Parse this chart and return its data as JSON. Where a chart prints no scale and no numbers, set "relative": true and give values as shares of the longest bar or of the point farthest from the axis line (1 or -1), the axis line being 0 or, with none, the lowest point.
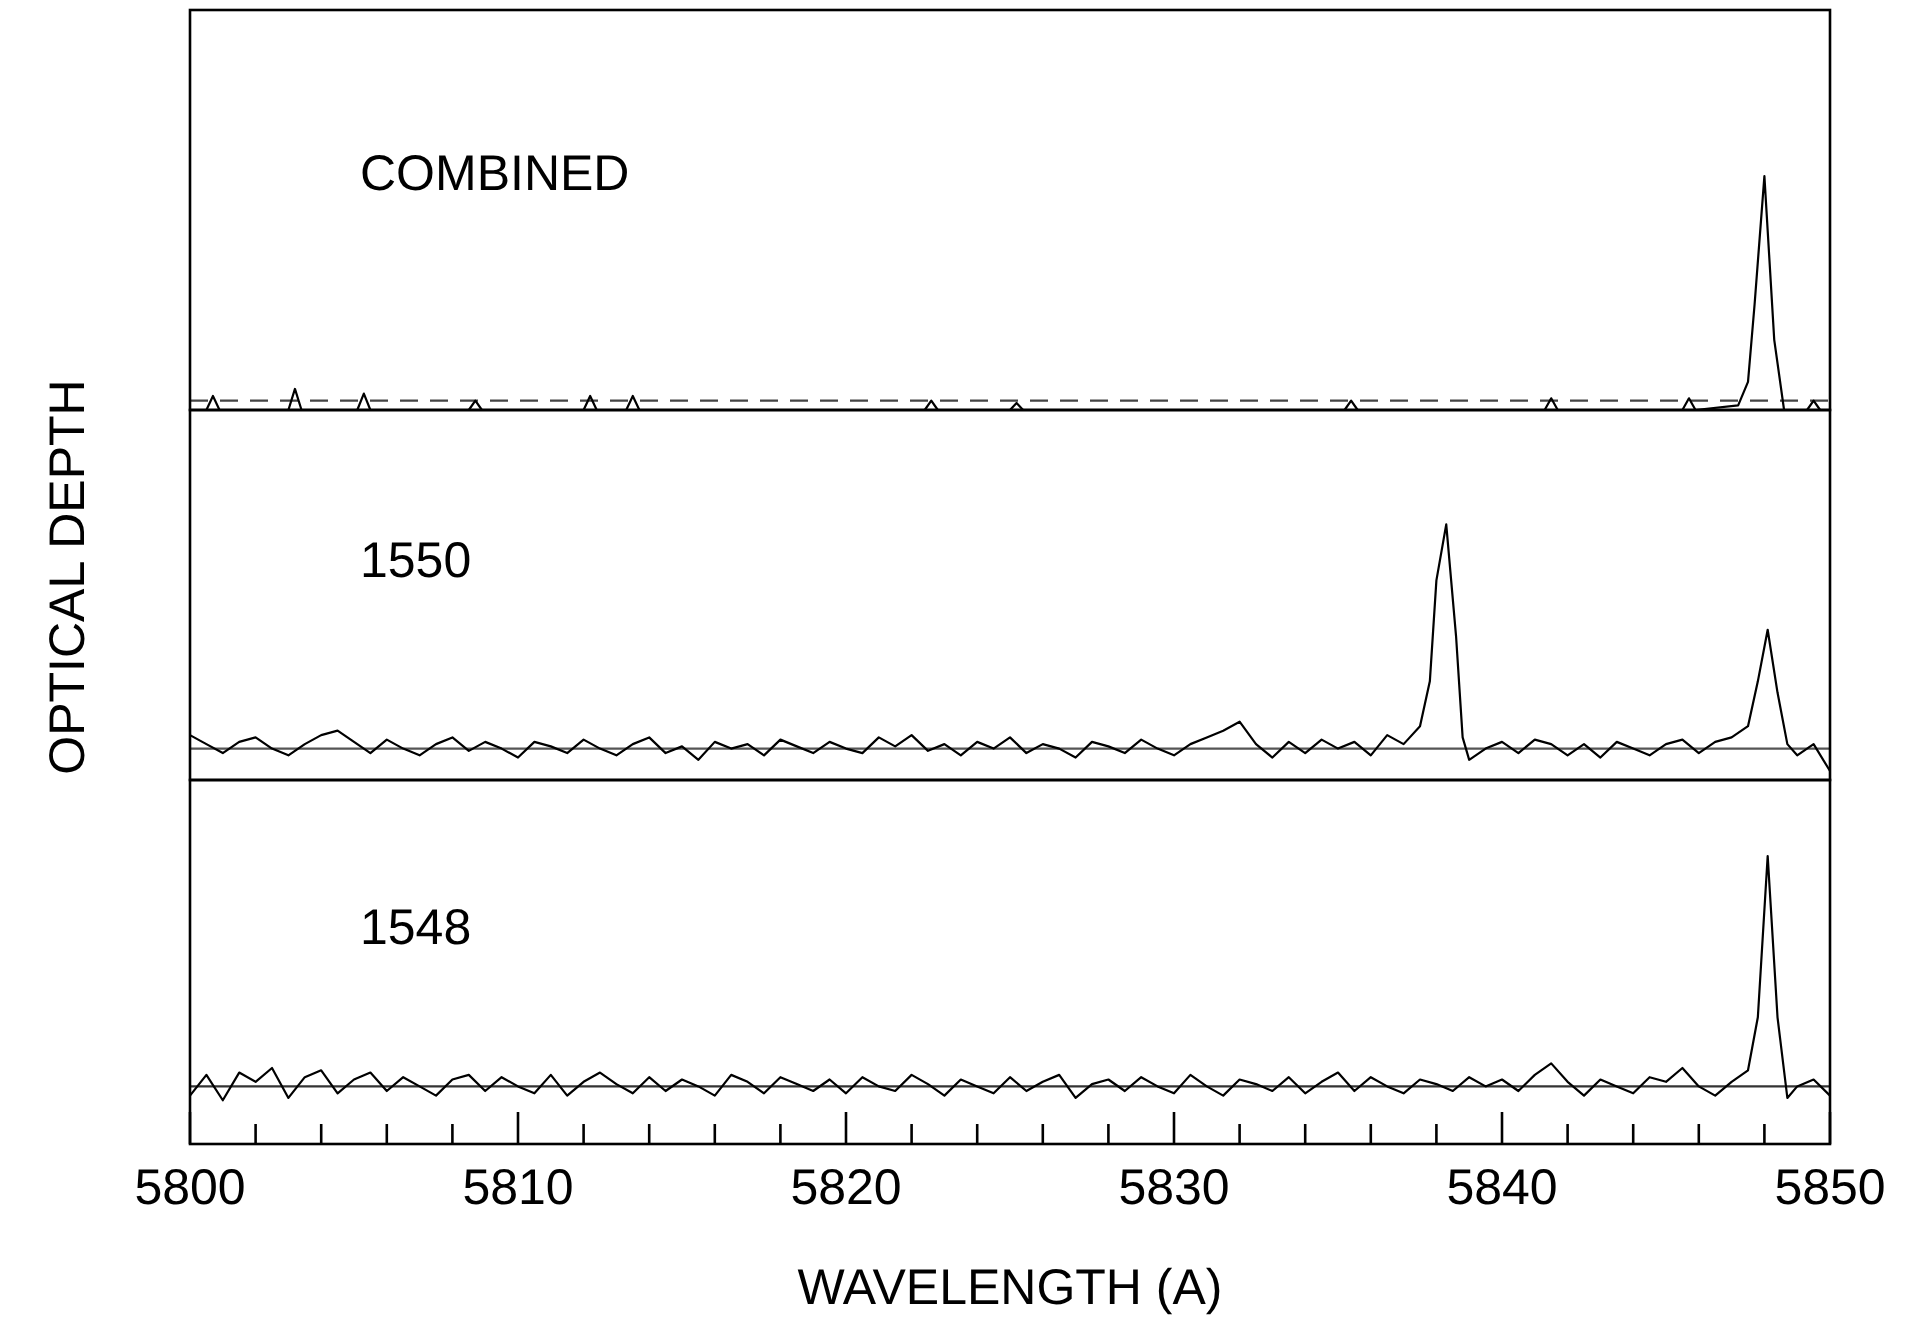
{
  "chart_data": [
    {
      "type": "line",
      "relative": true,
      "annotations": [
        "COMBINED"
      ],
      "xlim": [
        5800,
        5850
      ],
      "tick_labels": false,
      "ref_lines": [
        {
          "axis": "y",
          "value": 0.04,
          "color": "#444444",
          "line_style": "dashed"
        }
      ],
      "series": [
        {
          "color": "#000000",
          "x": [
            5800,
            5800.5,
            5800.7,
            5800.9,
            5803,
            5803.2,
            5803.4,
            5805.1,
            5805.3,
            5805.5,
            5808.5,
            5808.7,
            5808.9,
            5812,
            5812.2,
            5812.4,
            5813.3,
            5813.5,
            5813.7,
            5822.4,
            5822.6,
            5822.8,
            5825,
            5825.2,
            5825.4,
            5835.2,
            5835.4,
            5835.6,
            5841.3,
            5841.5,
            5841.7,
            5845.5,
            5845.7,
            5845.9,
            5847.2,
            5847.5,
            5847.7,
            5848.0,
            5848.3,
            5848.6,
            5849.3,
            5849.5,
            5849.7,
            5850
          ],
          "values": [
            0,
            0,
            0.06,
            0,
            0,
            0.09,
            0,
            0,
            0.07,
            0,
            0,
            0.04,
            0,
            0,
            0.06,
            0,
            0,
            0.06,
            0,
            0,
            0.04,
            0,
            0,
            0.03,
            0,
            0,
            0.04,
            0,
            0,
            0.05,
            0,
            0,
            0.05,
            0,
            0.02,
            0.12,
            0.45,
            1,
            0.3,
            0,
            0,
            0.04,
            0,
            0
          ]
        }
      ]
    },
    {
      "type": "line",
      "relative": true,
      "annotations": [
        "1550"
      ],
      "ylabel": "OPTICAL DEPTH",
      "xlim": [
        5800,
        5850
      ],
      "tick_labels": false,
      "ref_lines": [
        {
          "axis": "y",
          "value": 0,
          "color": "#555555"
        }
      ],
      "series": [
        {
          "color": "#000000",
          "x": [
            5800,
            5800.5,
            5801,
            5801.5,
            5802,
            5802.5,
            5803,
            5803.5,
            5804,
            5804.5,
            5805,
            5805.5,
            5806,
            5806.5,
            5807,
            5807.5,
            5808,
            5808.5,
            5809,
            5809.5,
            5810,
            5810.5,
            5811,
            5811.5,
            5812,
            5812.5,
            5813,
            5813.5,
            5814,
            5814.5,
            5815,
            5815.5,
            5816,
            5816.5,
            5817,
            5817.5,
            5818,
            5818.5,
            5819,
            5819.5,
            5820,
            5820.5,
            5821,
            5821.5,
            5822,
            5822.5,
            5823,
            5823.5,
            5824,
            5824.5,
            5825,
            5825.5,
            5826,
            5826.5,
            5827,
            5827.5,
            5828,
            5828.5,
            5829,
            5829.5,
            5830,
            5830.5,
            5831,
            5831.5,
            5832,
            5832.5,
            5833,
            5833.5,
            5834,
            5834.5,
            5835,
            5835.5,
            5836,
            5836.5,
            5837,
            5837.5,
            5837.8,
            5838.0,
            5838.3,
            5838.6,
            5838.8,
            5839,
            5839.5,
            5840,
            5840.5,
            5841,
            5841.5,
            5842,
            5842.5,
            5843,
            5843.5,
            5844,
            5844.5,
            5845,
            5845.5,
            5846,
            5846.5,
            5847,
            5847.5,
            5847.8,
            5848.1,
            5848.4,
            5848.7,
            5849,
            5849.5,
            5850
          ],
          "values": [
            0.06,
            0.02,
            -0.02,
            0.03,
            0.05,
            0.0,
            -0.03,
            0.02,
            0.06,
            0.08,
            0.03,
            -0.02,
            0.04,
            0.0,
            -0.03,
            0.02,
            0.05,
            -0.01,
            0.03,
            0.0,
            -0.04,
            0.03,
            0.01,
            -0.02,
            0.04,
            0.0,
            -0.03,
            0.02,
            0.05,
            -0.02,
            0.01,
            -0.05,
            0.03,
            0.0,
            0.02,
            -0.03,
            0.04,
            0.01,
            -0.02,
            0.03,
            0.0,
            -0.02,
            0.05,
            0.01,
            0.06,
            -0.01,
            0.02,
            -0.03,
            0.03,
            0.0,
            0.05,
            -0.02,
            0.02,
            0.0,
            -0.04,
            0.03,
            0.01,
            -0.02,
            0.04,
            0.0,
            -0.03,
            0.02,
            0.05,
            0.08,
            0.12,
            0.02,
            -0.04,
            0.03,
            -0.02,
            0.04,
            0.0,
            0.03,
            -0.03,
            0.06,
            0.02,
            0.1,
            0.3,
            0.75,
            1,
            0.5,
            0.05,
            -0.05,
            0.0,
            0.03,
            -0.02,
            0.04,
            0.02,
            -0.03,
            0.02,
            -0.04,
            0.03,
            0.0,
            -0.03,
            0.02,
            0.04,
            -0.02,
            0.03,
            0.05,
            0.1,
            0.3,
            0.53,
            0.25,
            0.02,
            -0.03,
            0.02,
            -0.1
          ]
        }
      ]
    },
    {
      "type": "line",
      "relative": true,
      "annotations": [
        "1548"
      ],
      "xlabel": "WAVELENGTH (A)",
      "xlim": [
        5800,
        5850
      ],
      "tick_labels": "x",
      "xticks": [
        5800,
        {
          "value": 5802,
          "label": null
        },
        {
          "value": 5804,
          "label": null
        },
        {
          "value": 5806,
          "label": null
        },
        {
          "value": 5808,
          "label": null
        },
        5810,
        {
          "value": 5812,
          "label": null
        },
        {
          "value": 5814,
          "label": null
        },
        {
          "value": 5816,
          "label": null
        },
        {
          "value": 5818,
          "label": null
        },
        5820,
        {
          "value": 5822,
          "label": null
        },
        {
          "value": 5824,
          "label": null
        },
        {
          "value": 5826,
          "label": null
        },
        {
          "value": 5828,
          "label": null
        },
        5830,
        {
          "value": 5832,
          "label": null
        },
        {
          "value": 5834,
          "label": null
        },
        {
          "value": 5836,
          "label": null
        },
        {
          "value": 5838,
          "label": null
        },
        5840,
        {
          "value": 5842,
          "label": null
        },
        {
          "value": 5844,
          "label": null
        },
        {
          "value": 5846,
          "label": null
        },
        {
          "value": 5848,
          "label": null
        },
        5850
      ],
      "ref_lines": [
        {
          "axis": "y",
          "value": 0,
          "color": "#333333"
        }
      ],
      "series": [
        {
          "color": "#000000",
          "x": [
            5800,
            5800.5,
            5801,
            5801.5,
            5802,
            5802.5,
            5803,
            5803.5,
            5804,
            5804.5,
            5805,
            5805.5,
            5806,
            5806.5,
            5807,
            5807.5,
            5808,
            5808.5,
            5809,
            5809.5,
            5810,
            5810.5,
            5811,
            5811.5,
            5812,
            5812.5,
            5813,
            5813.5,
            5814,
            5814.5,
            5815,
            5815.5,
            5816,
            5816.5,
            5817,
            5817.5,
            5818,
            5818.5,
            5819,
            5819.5,
            5820,
            5820.5,
            5821,
            5821.5,
            5822,
            5822.5,
            5823,
            5823.5,
            5824,
            5824.5,
            5825,
            5825.5,
            5826,
            5826.5,
            5827,
            5827.5,
            5828,
            5828.5,
            5829,
            5829.5,
            5830,
            5830.5,
            5831,
            5831.5,
            5832,
            5832.5,
            5833,
            5833.5,
            5834,
            5834.5,
            5835,
            5835.5,
            5836,
            5836.5,
            5837,
            5837.5,
            5838,
            5838.5,
            5839,
            5839.5,
            5840,
            5840.5,
            5841,
            5841.5,
            5842,
            5842.5,
            5843,
            5843.5,
            5844,
            5844.5,
            5845,
            5845.5,
            5846,
            5846.5,
            5847,
            5847.5,
            5847.8,
            5848.1,
            5848.4,
            5848.7,
            5849,
            5849.5,
            5850
          ],
          "values": [
            -0.04,
            0.05,
            -0.06,
            0.06,
            0.02,
            0.08,
            -0.05,
            0.04,
            0.07,
            -0.03,
            0.03,
            0.06,
            -0.02,
            0.04,
            0.0,
            -0.04,
            0.03,
            0.05,
            -0.02,
            0.04,
            0.0,
            -0.03,
            0.05,
            -0.04,
            0.02,
            0.06,
            0.01,
            -0.03,
            0.04,
            -0.02,
            0.03,
            0.0,
            -0.04,
            0.05,
            0.02,
            -0.03,
            0.04,
            0.01,
            -0.02,
            0.03,
            -0.03,
            0.04,
            0.0,
            -0.02,
            0.05,
            0.01,
            -0.04,
            0.03,
            0.0,
            -0.03,
            0.04,
            -0.02,
            0.02,
            0.05,
            -0.05,
            0.01,
            0.03,
            -0.02,
            0.04,
            0.0,
            -0.03,
            0.05,
            0.0,
            -0.04,
            0.03,
            0.01,
            -0.02,
            0.04,
            -0.03,
            0.02,
            0.06,
            -0.02,
            0.04,
            0.0,
            -0.03,
            0.03,
            0.01,
            -0.02,
            0.04,
            0.0,
            0.03,
            -0.02,
            0.05,
            0.1,
            0.02,
            -0.04,
            0.03,
            0.0,
            -0.03,
            0.04,
            0.02,
            0.08,
            0.0,
            -0.04,
            0.02,
            0.07,
            0.3,
            1,
            0.3,
            -0.05,
            0.0,
            0.03,
            -0.04
          ]
        }
      ]
    }
  ]
}
